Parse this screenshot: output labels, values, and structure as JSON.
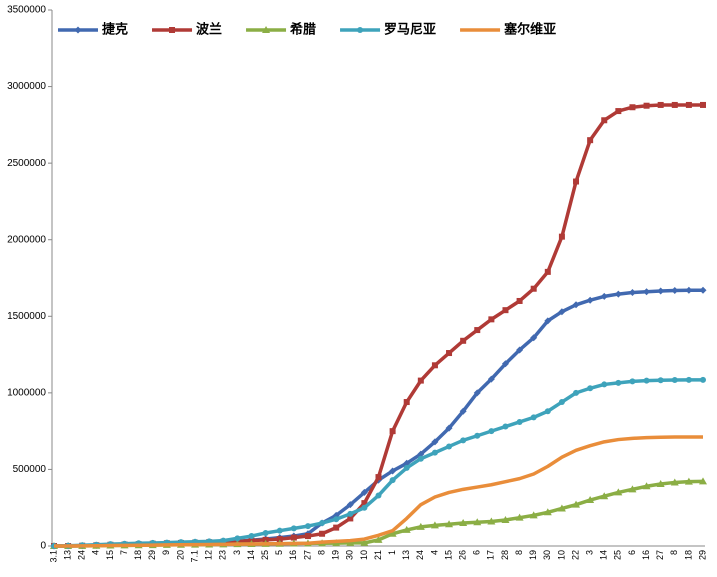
{
  "chart_data": {
    "type": "line",
    "categories": [
      "3.1",
      "13",
      "24",
      "4",
      "15",
      "7",
      "18",
      "29",
      "9",
      "20",
      "7.1",
      "12",
      "23",
      "3",
      "14",
      "25",
      "5",
      "16",
      "27",
      "8",
      "19",
      "30",
      "10",
      "21",
      "1",
      "13",
      "24",
      "4",
      "15",
      "26",
      "6",
      "17",
      "28",
      "8",
      "19",
      "30",
      "10",
      "22",
      "3",
      "14",
      "25",
      "6",
      "16",
      "27",
      "8",
      "18",
      "29"
    ],
    "ylim": [
      0,
      3500000
    ],
    "yticks": [
      0,
      500000,
      1000000,
      1500000,
      2000000,
      2500000,
      3000000,
      3500000
    ],
    "grid": false,
    "legend": "top-left",
    "series": [
      {
        "name": "捷克",
        "color": "#4169b0",
        "marker": "diamond",
        "values": [
          0,
          1000,
          2000,
          4000,
          6000,
          8000,
          10000,
          12000,
          14000,
          16000,
          18000,
          20000,
          24000,
          30000,
          38000,
          46000,
          55000,
          65000,
          80000,
          150000,
          200000,
          270000,
          350000,
          430000,
          490000,
          540000,
          600000,
          680000,
          770000,
          880000,
          1000000,
          1090000,
          1190000,
          1280000,
          1360000,
          1470000,
          1530000,
          1575000,
          1605000,
          1630000,
          1645000,
          1655000,
          1660000,
          1665000,
          1668000,
          1670000,
          1670000
        ]
      },
      {
        "name": "波兰",
        "color": "#b03a36",
        "marker": "square",
        "values": [
          0,
          0,
          2000,
          5000,
          8000,
          10000,
          12000,
          15000,
          18000,
          20000,
          22000,
          25000,
          28000,
          30000,
          35000,
          40000,
          45000,
          55000,
          65000,
          80000,
          120000,
          180000,
          280000,
          450000,
          750000,
          940000,
          1080000,
          1180000,
          1260000,
          1340000,
          1410000,
          1480000,
          1540000,
          1600000,
          1680000,
          1790000,
          2020000,
          2380000,
          2650000,
          2780000,
          2840000,
          2865000,
          2875000,
          2880000,
          2880000,
          2880000,
          2880000
        ]
      },
      {
        "name": "希腊",
        "color": "#8bae45",
        "marker": "triangle",
        "values": [
          0,
          0,
          1000,
          2000,
          3000,
          4000,
          5000,
          6000,
          7000,
          8000,
          9000,
          10000,
          11000,
          12000,
          13000,
          14000,
          15000,
          16000,
          17000,
          18000,
          19000,
          20000,
          20000,
          40000,
          80000,
          105000,
          125000,
          135000,
          142000,
          150000,
          155000,
          160000,
          170000,
          185000,
          200000,
          220000,
          245000,
          270000,
          300000,
          325000,
          350000,
          370000,
          390000,
          405000,
          415000,
          420000,
          422000
        ]
      },
      {
        "name": "罗马尼亚",
        "color": "#3ea3bb",
        "marker": "circle",
        "values": [
          0,
          2000,
          5000,
          8000,
          12000,
          15000,
          18000,
          20000,
          22000,
          25000,
          28000,
          30000,
          35000,
          50000,
          65000,
          85000,
          100000,
          115000,
          130000,
          150000,
          175000,
          210000,
          250000,
          330000,
          430000,
          510000,
          570000,
          610000,
          650000,
          690000,
          720000,
          750000,
          780000,
          810000,
          840000,
          880000,
          940000,
          1000000,
          1030000,
          1055000,
          1065000,
          1075000,
          1080000,
          1082000,
          1084000,
          1085000,
          1085000
        ]
      },
      {
        "name": "塞尔维亚",
        "color": "#e98d3a",
        "marker": "none",
        "values": [
          0,
          0,
          1000,
          2000,
          3000,
          4000,
          5000,
          6000,
          7000,
          8000,
          9000,
          10000,
          11000,
          12000,
          13000,
          14000,
          15000,
          16000,
          18000,
          25000,
          30000,
          35000,
          45000,
          70000,
          100000,
          180000,
          270000,
          320000,
          350000,
          370000,
          385000,
          400000,
          420000,
          440000,
          470000,
          520000,
          580000,
          625000,
          655000,
          680000,
          695000,
          703000,
          708000,
          710000,
          712000,
          712000,
          712000
        ]
      }
    ]
  }
}
